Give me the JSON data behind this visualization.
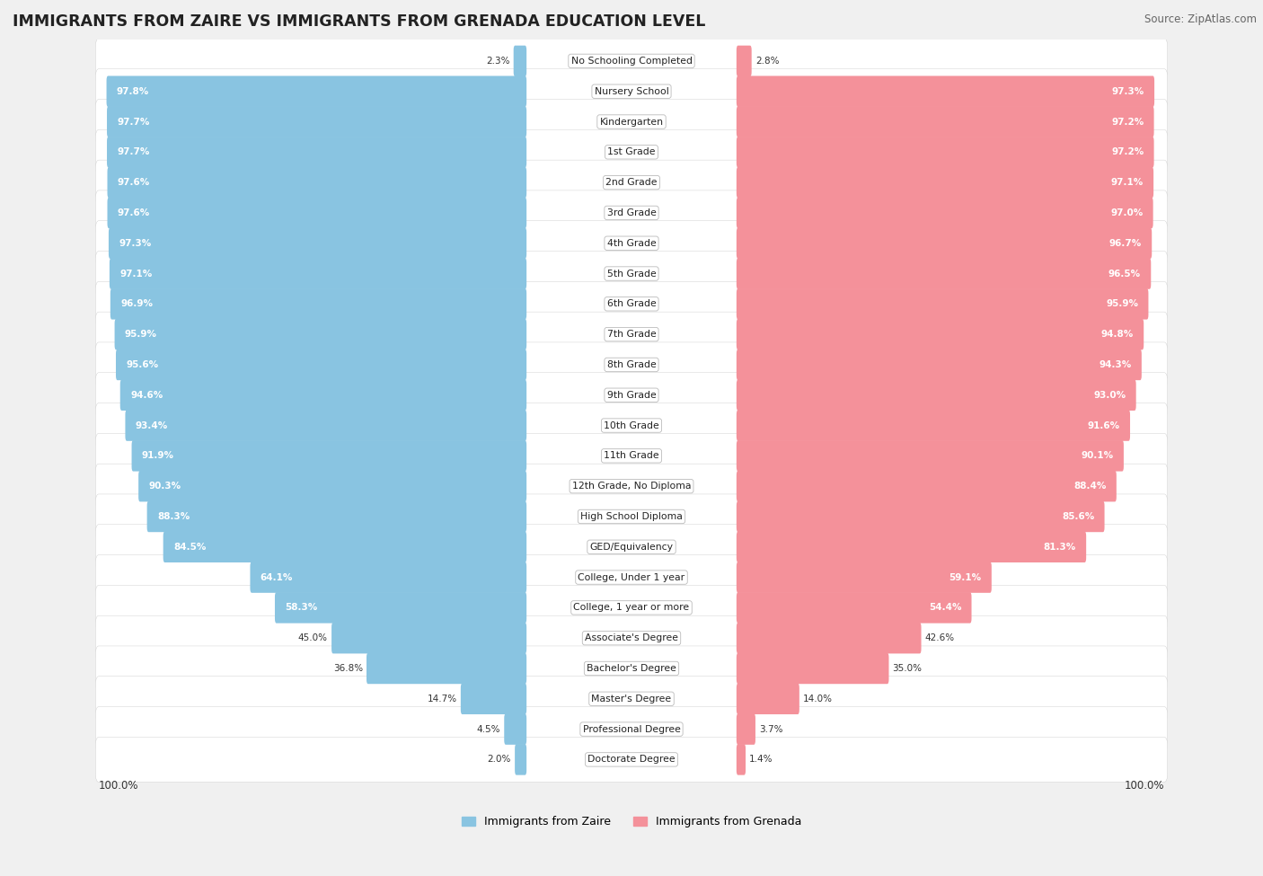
{
  "title": "IMMIGRANTS FROM ZAIRE VS IMMIGRANTS FROM GRENADA EDUCATION LEVEL",
  "source": "Source: ZipAtlas.com",
  "categories": [
    "No Schooling Completed",
    "Nursery School",
    "Kindergarten",
    "1st Grade",
    "2nd Grade",
    "3rd Grade",
    "4th Grade",
    "5th Grade",
    "6th Grade",
    "7th Grade",
    "8th Grade",
    "9th Grade",
    "10th Grade",
    "11th Grade",
    "12th Grade, No Diploma",
    "High School Diploma",
    "GED/Equivalency",
    "College, Under 1 year",
    "College, 1 year or more",
    "Associate's Degree",
    "Bachelor's Degree",
    "Master's Degree",
    "Professional Degree",
    "Doctorate Degree"
  ],
  "zaire_values": [
    2.3,
    97.8,
    97.7,
    97.7,
    97.6,
    97.6,
    97.3,
    97.1,
    96.9,
    95.9,
    95.6,
    94.6,
    93.4,
    91.9,
    90.3,
    88.3,
    84.5,
    64.1,
    58.3,
    45.0,
    36.8,
    14.7,
    4.5,
    2.0
  ],
  "grenada_values": [
    2.8,
    97.3,
    97.2,
    97.2,
    97.1,
    97.0,
    96.7,
    96.5,
    95.9,
    94.8,
    94.3,
    93.0,
    91.6,
    90.1,
    88.4,
    85.6,
    81.3,
    59.1,
    54.4,
    42.6,
    35.0,
    14.0,
    3.7,
    1.4
  ],
  "zaire_color": "#89C4E1",
  "grenada_color": "#F4919A",
  "background_color": "#f0f0f0",
  "row_color_odd": "#f8f8f8",
  "row_color_even": "#ffffff",
  "legend_zaire": "Immigrants from Zaire",
  "legend_grenada": "Immigrants from Grenada"
}
